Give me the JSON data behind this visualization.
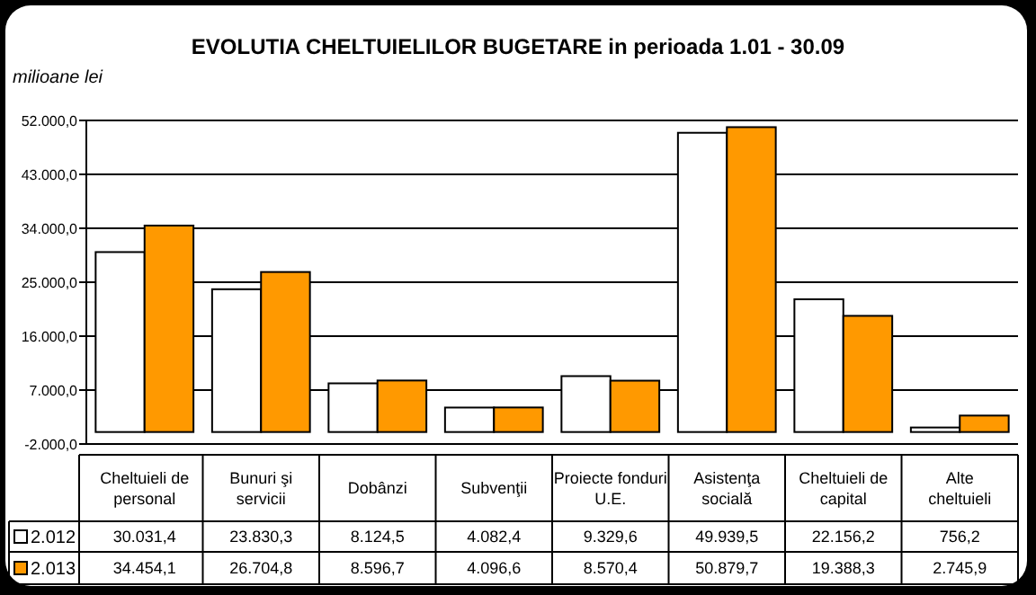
{
  "chart_data": {
    "type": "bar",
    "title": "EVOLUTIA CHELTUIELILOR BUGETARE in perioada 1.01 - 30.09",
    "ylabel": "milioane lei",
    "categories": [
      "Cheltuieli de personal",
      "Bunuri şi servicii",
      "Dobânzi",
      "Subvenţii",
      "Proiecte fonduri U.E.",
      "Asistenţa socială",
      "Cheltuieli de capital",
      "Alte cheltuieli"
    ],
    "series": [
      {
        "name": "2.012",
        "color": "#ffffff",
        "values": [
          30031.4,
          23830.3,
          8124.5,
          4082.4,
          9329.6,
          49939.5,
          22156.2,
          756.2
        ],
        "value_labels": [
          "30.031,4",
          "23.830,3",
          "8.124,5",
          "4.082,4",
          "9.329,6",
          "49.939,5",
          "22.156,2",
          "756,2"
        ]
      },
      {
        "name": "2.013",
        "color": "#ff9900",
        "values": [
          34454.1,
          26704.8,
          8596.7,
          4096.6,
          8570.4,
          50879.7,
          19388.3,
          2745.9
        ],
        "value_labels": [
          "34.454,1",
          "26.704,8",
          "8.596,7",
          "4.096,6",
          "8.570,4",
          "50.879,7",
          "19.388,3",
          "2.745,9"
        ]
      }
    ],
    "ylim": [
      -2000,
      52000
    ],
    "yticks": [
      {
        "value": -2000,
        "label": "-2.000,0"
      },
      {
        "value": 7000,
        "label": "7.000,0"
      },
      {
        "value": 16000,
        "label": "16.000,0"
      },
      {
        "value": 25000,
        "label": "25.000,0"
      },
      {
        "value": 34000,
        "label": "34.000,0"
      },
      {
        "value": 43000,
        "label": "43.000,0"
      },
      {
        "value": 52000,
        "label": "52.000,0"
      }
    ],
    "grid": "y",
    "legend": "bottom left"
  }
}
